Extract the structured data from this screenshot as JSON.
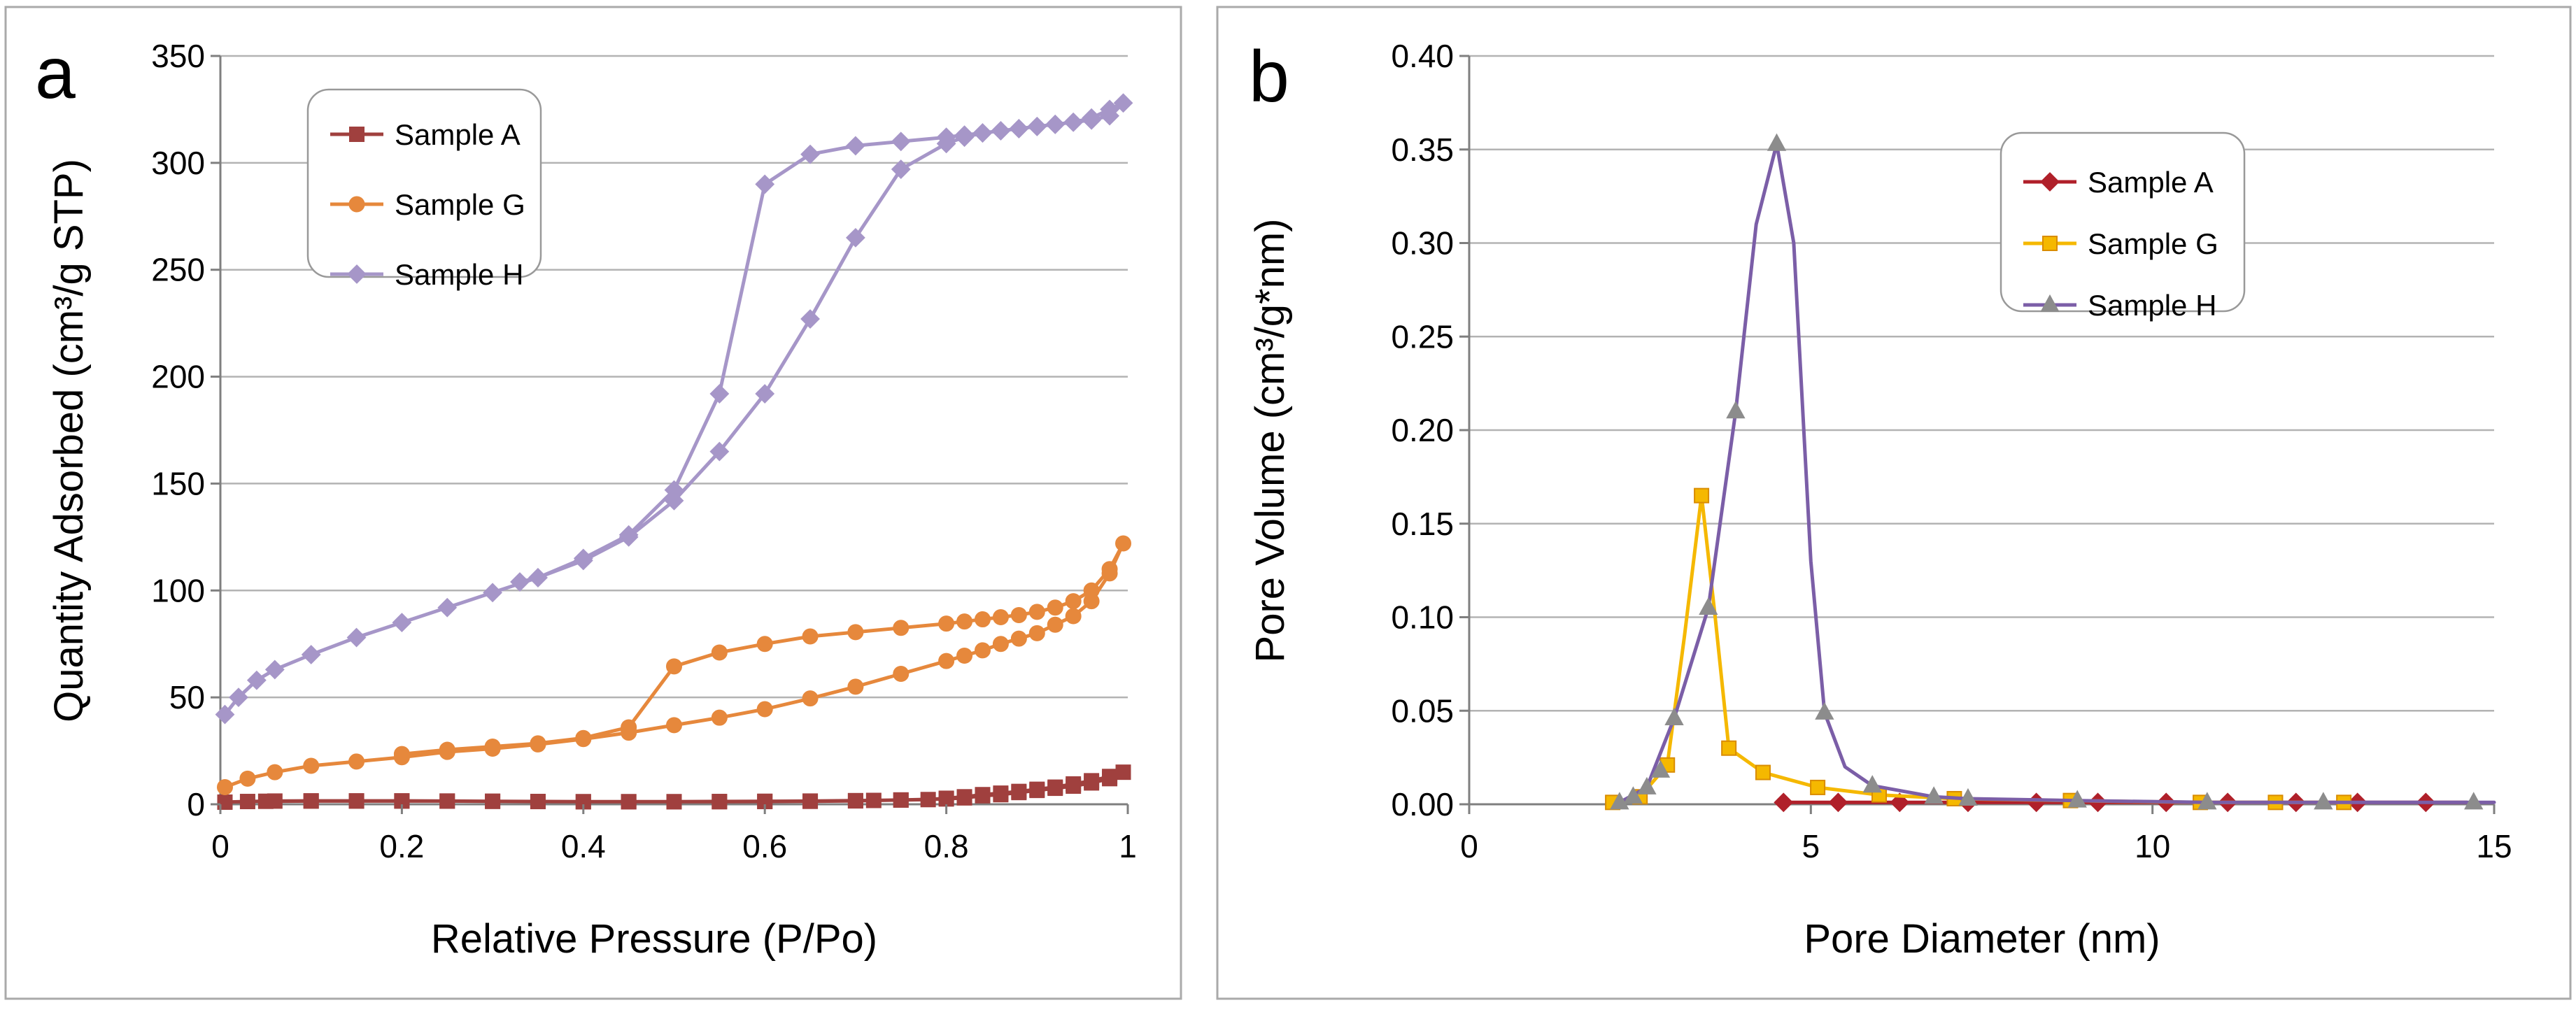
{
  "chart_data": [
    {
      "type": "line",
      "panel_label": "a",
      "xlabel": "Relative Pressure (P/Po)",
      "ylabel": "Quantity Adsorbed (cm³/g STP)",
      "xlim": [
        0,
        1
      ],
      "ylim": [
        0,
        350
      ],
      "xticks": [
        0,
        0.2,
        0.4,
        0.6,
        0.8,
        1
      ],
      "xtick_labels": [
        "0",
        "0.2",
        "0.4",
        "0.6",
        "0.8",
        "1"
      ],
      "yticks": [
        0,
        50,
        100,
        150,
        200,
        250,
        300,
        350
      ],
      "ytick_labels": [
        "0",
        "50",
        "100",
        "150",
        "200",
        "250",
        "300",
        "350"
      ],
      "grid": "horizontal",
      "legend": "top-left",
      "series": [
        {
          "name": "Sample A",
          "color": "#A0403E",
          "marker": "square",
          "x": [
            0.005,
            0.03,
            0.06,
            0.1,
            0.15,
            0.2,
            0.25,
            0.3,
            0.35,
            0.4,
            0.45,
            0.5,
            0.55,
            0.6,
            0.65,
            0.7,
            0.75,
            0.8,
            0.82,
            0.84,
            0.86,
            0.88,
            0.9,
            0.92,
            0.94,
            0.96,
            0.98,
            0.995,
            0.98,
            0.96,
            0.94,
            0.92,
            0.9,
            0.88,
            0.86,
            0.84,
            0.82,
            0.8,
            0.78,
            0.75,
            0.72,
            0.7,
            0.65,
            0.6,
            0.55,
            0.5,
            0.45,
            0.4,
            0.35,
            0.3,
            0.25,
            0.2,
            0.15,
            0.1,
            0.05
          ],
          "y": [
            1,
            1.3,
            1.5,
            1.6,
            1.6,
            1.6,
            1.5,
            1.4,
            1.3,
            1.2,
            1.2,
            1.2,
            1.3,
            1.4,
            1.5,
            1.7,
            2,
            2.5,
            3,
            4,
            4.5,
            5.5,
            6.5,
            7.5,
            8.5,
            10,
            12,
            15,
            13,
            11,
            9.5,
            8,
            7,
            6,
            5.2,
            4.5,
            3.5,
            2.8,
            2.2,
            2,
            1.8,
            1.6,
            1.4,
            1.3,
            1.2,
            1.2,
            1.2,
            1.2,
            1.3,
            1.4,
            1.5,
            1.5,
            1.5,
            1.5,
            1.4
          ]
        },
        {
          "name": "Sample G",
          "color": "#E6883C",
          "marker": "circle",
          "x": [
            0.005,
            0.03,
            0.06,
            0.1,
            0.15,
            0.2,
            0.25,
            0.3,
            0.35,
            0.4,
            0.45,
            0.5,
            0.55,
            0.6,
            0.65,
            0.7,
            0.75,
            0.8,
            0.82,
            0.84,
            0.86,
            0.88,
            0.9,
            0.92,
            0.94,
            0.96,
            0.98,
            0.995,
            0.98,
            0.96,
            0.94,
            0.92,
            0.9,
            0.88,
            0.86,
            0.84,
            0.82,
            0.8,
            0.75,
            0.7,
            0.65,
            0.6,
            0.55,
            0.5,
            0.45,
            0.4,
            0.35,
            0.3,
            0.25,
            0.2
          ],
          "y": [
            8,
            12,
            15,
            18,
            20,
            22,
            24.5,
            26,
            28,
            30.5,
            33.5,
            37,
            40.5,
            44.5,
            49.5,
            55,
            61,
            67,
            69.5,
            72,
            75,
            77.5,
            80,
            84,
            88,
            95,
            108,
            122,
            110,
            100,
            95,
            92,
            90,
            88.5,
            87.5,
            86.5,
            85.5,
            84.5,
            82.5,
            80.5,
            78.5,
            75,
            71,
            64.5,
            36,
            31,
            28.5,
            27,
            25.5,
            23.5
          ]
        },
        {
          "name": "Sample H",
          "color": "#A696C8",
          "marker": "diamond",
          "x": [
            0.005,
            0.02,
            0.04,
            0.06,
            0.1,
            0.15,
            0.2,
            0.25,
            0.3,
            0.35,
            0.4,
            0.45,
            0.5,
            0.55,
            0.6,
            0.65,
            0.7,
            0.75,
            0.8,
            0.82,
            0.84,
            0.86,
            0.88,
            0.9,
            0.92,
            0.94,
            0.96,
            0.98,
            0.995,
            0.98,
            0.96,
            0.94,
            0.92,
            0.9,
            0.88,
            0.86,
            0.84,
            0.82,
            0.8,
            0.75,
            0.7,
            0.65,
            0.6,
            0.55,
            0.5,
            0.45,
            0.4,
            0.35,
            0.33
          ],
          "y": [
            42,
            50,
            58,
            63,
            70,
            78,
            85,
            92,
            99,
            106,
            114,
            125,
            142,
            165,
            192,
            227,
            265,
            297,
            309,
            312,
            314,
            315,
            316,
            317,
            318,
            319,
            320,
            322,
            328,
            325,
            321,
            319,
            318,
            317,
            316,
            315,
            314,
            313,
            312,
            310,
            308,
            304,
            290,
            192,
            147,
            126,
            115,
            106,
            104
          ]
        }
      ]
    },
    {
      "type": "line",
      "panel_label": "b",
      "xlabel": "Pore Diameter (nm)",
      "ylabel": "Pore Volume (cm³/g*nm)",
      "xlim": [
        0,
        15
      ],
      "ylim": [
        0,
        0.4
      ],
      "xticks": [
        0,
        5,
        10,
        15
      ],
      "xtick_labels": [
        "0",
        "5",
        "10",
        "15"
      ],
      "yticks": [
        0,
        0.05,
        0.1,
        0.15,
        0.2,
        0.25,
        0.3,
        0.35,
        0.4
      ],
      "ytick_labels": [
        "0.00",
        "0.05",
        "0.10",
        "0.15",
        "0.20",
        "0.25",
        "0.30",
        "0.35",
        "0.40"
      ],
      "grid": "horizontal",
      "legend": "top-right",
      "series": [
        {
          "name": "Sample A",
          "color": "#B0202A",
          "marker": "diamond",
          "x": [
            4.6,
            5.4,
            6.3,
            7.3,
            8.3,
            9.2,
            10.2,
            11.1,
            12.1,
            13.0,
            14.0
          ],
          "y": [
            0.001,
            0.001,
            0.001,
            0.001,
            0.001,
            0.001,
            0.001,
            0.001,
            0.001,
            0.001,
            0.001
          ],
          "curve": [
            [
              4.6,
              0.001
            ],
            [
              14.6,
              0.001
            ]
          ]
        },
        {
          "name": "Sample G",
          "color": "#F5B800",
          "marker": "square",
          "x": [
            2.1,
            2.5,
            2.9,
            3.4,
            3.8,
            4.3,
            5.1,
            6.0,
            7.1,
            8.8,
            10.7,
            11.8,
            12.8
          ],
          "y": [
            0.001,
            0.004,
            0.021,
            0.165,
            0.03,
            0.017,
            0.009,
            0.005,
            0.003,
            0.002,
            0.001,
            0.001,
            0.001
          ],
          "curve": [
            [
              2.1,
              0.001
            ],
            [
              2.5,
              0.004
            ],
            [
              2.9,
              0.021
            ],
            [
              3.15,
              0.09
            ],
            [
              3.4,
              0.165
            ],
            [
              3.6,
              0.1
            ],
            [
              3.8,
              0.03
            ],
            [
              4.3,
              0.017
            ],
            [
              5.1,
              0.009
            ],
            [
              6.0,
              0.005
            ],
            [
              7.1,
              0.003
            ],
            [
              8.8,
              0.002
            ],
            [
              10.7,
              0.001
            ],
            [
              12.8,
              0.001
            ]
          ]
        },
        {
          "name": "Sample H",
          "color": "#7B5EA7",
          "marker": "triangle",
          "x": [
            2.2,
            2.4,
            2.6,
            2.8,
            3.0,
            3.5,
            3.9,
            4.5,
            5.2,
            5.9,
            6.8,
            7.3,
            8.9,
            10.8,
            12.5,
            14.7
          ],
          "y": [
            0.001,
            0.004,
            0.009,
            0.018,
            0.046,
            0.105,
            0.21,
            0.353,
            0.049,
            0.01,
            0.004,
            0.003,
            0.002,
            0.001,
            0.001,
            0.001
          ],
          "curve": [
            [
              2.2,
              0.001
            ],
            [
              2.6,
              0.009
            ],
            [
              3.0,
              0.046
            ],
            [
              3.5,
              0.105
            ],
            [
              3.9,
              0.21
            ],
            [
              4.2,
              0.31
            ],
            [
              4.5,
              0.353
            ],
            [
              4.75,
              0.3
            ],
            [
              5.0,
              0.13
            ],
            [
              5.2,
              0.049
            ],
            [
              5.5,
              0.02
            ],
            [
              5.9,
              0.01
            ],
            [
              6.8,
              0.004
            ],
            [
              7.3,
              0.003
            ],
            [
              8.9,
              0.002
            ],
            [
              10.8,
              0.001
            ],
            [
              12.5,
              0.001
            ],
            [
              15.0,
              0.001
            ]
          ]
        }
      ]
    }
  ]
}
